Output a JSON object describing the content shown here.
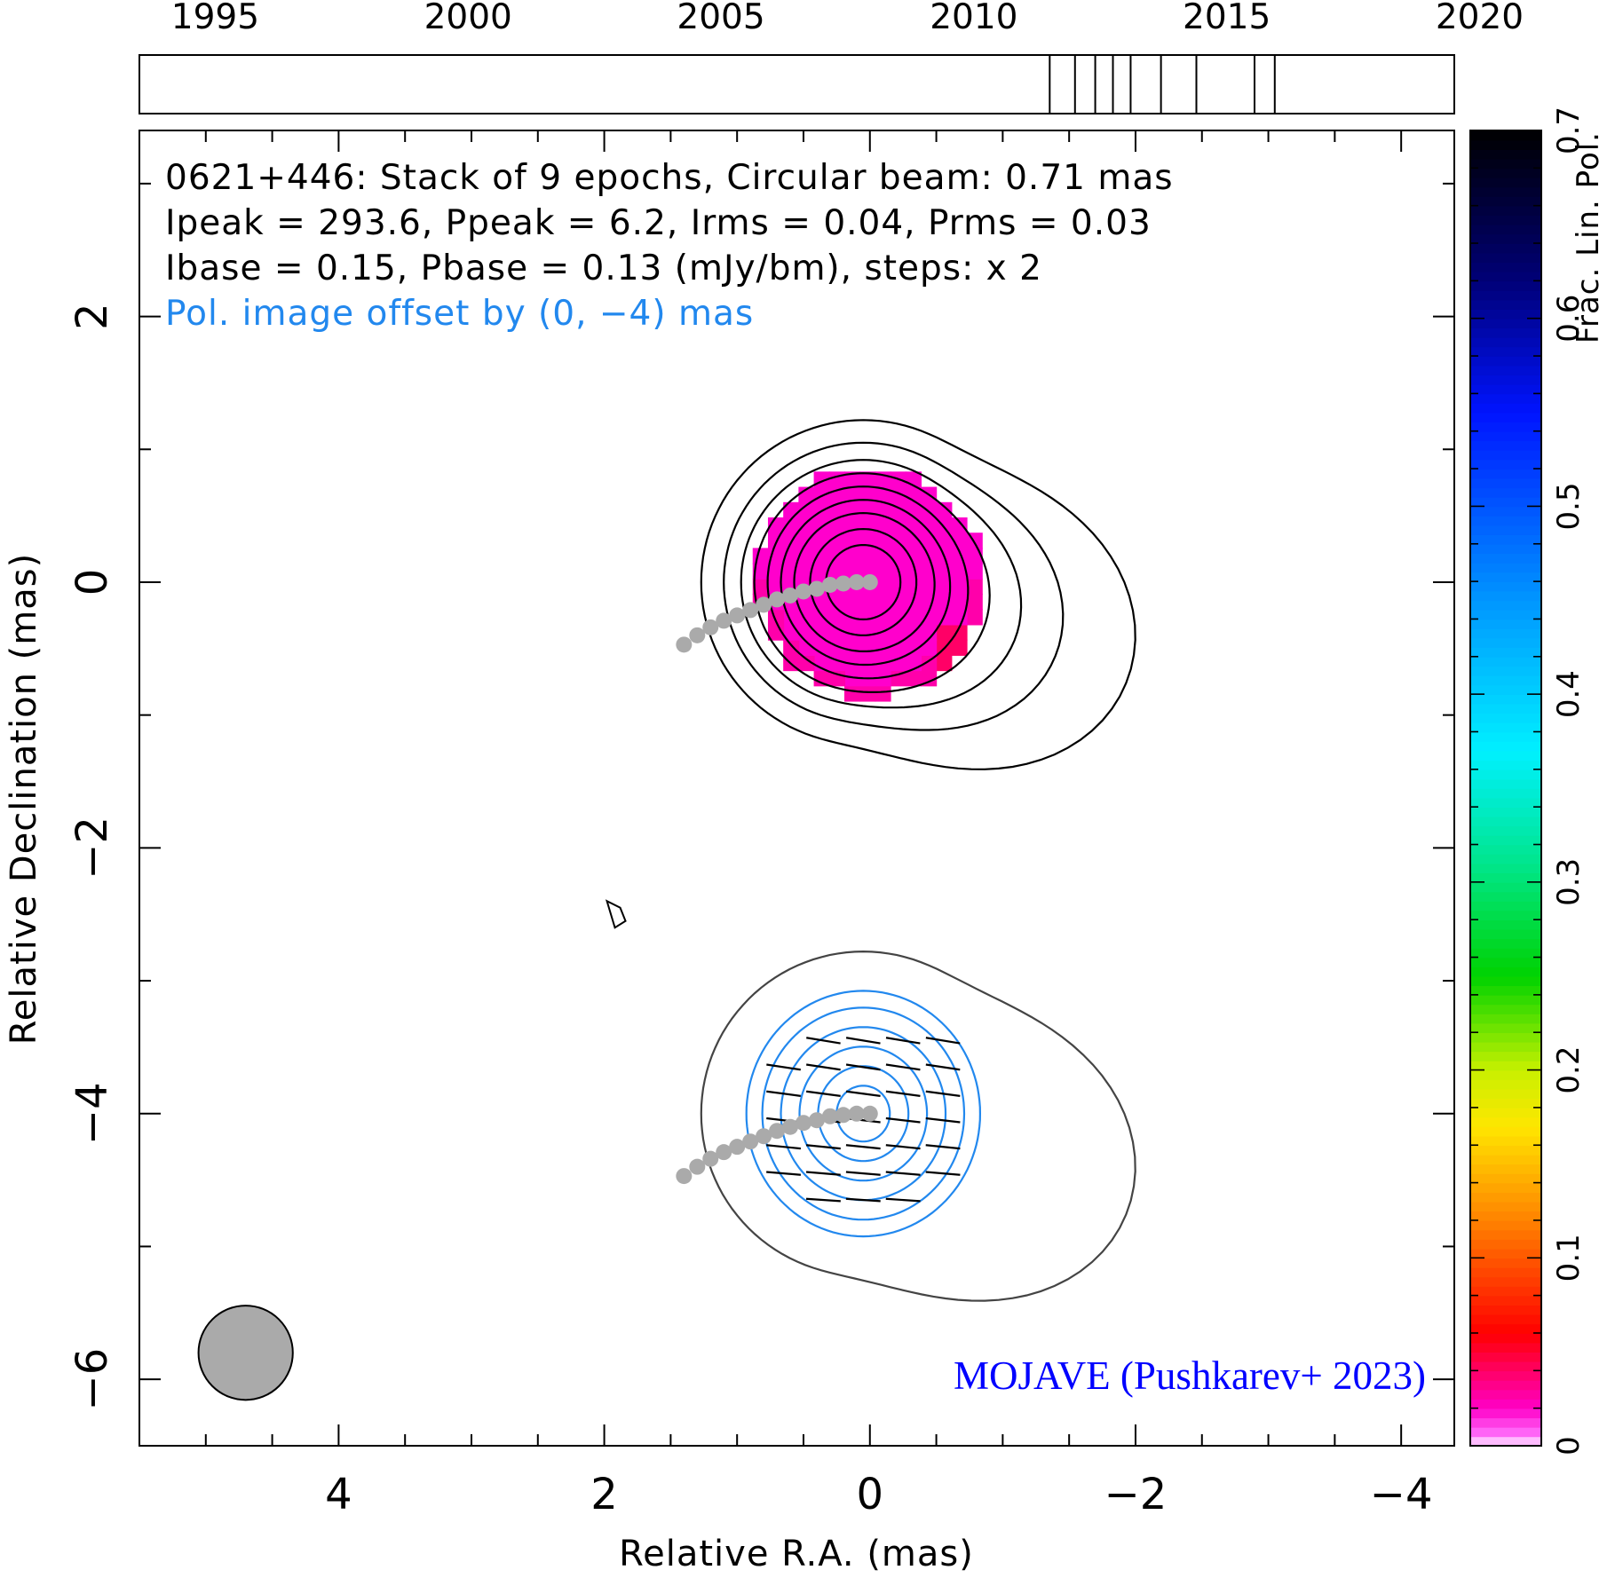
{
  "chart_data": {
    "type": "contour",
    "source_name": "0621+446",
    "header_lines": [
      "0621+446: Stack of 9 epochs, Circular beam: 0.71 mas",
      "Ipeak = 293.6, Ppeak = 6.2, Irms = 0.04, Prms = 0.03",
      "Ibase = 0.15, Pbase = 0.13 (mJy/bm), steps: x 2"
    ],
    "offset_note": "Pol. image offset by (0, −4) mas",
    "credit": "MOJAVE (Pushkarev+ 2023)",
    "xlabel": "Relative R.A. (mas)",
    "ylabel": "Relative Declination (mas)",
    "xlim": [
      5.5,
      -4.4
    ],
    "ylim": [
      -6.5,
      3.4
    ],
    "x_ticks": [
      4,
      2,
      0,
      -2,
      -4
    ],
    "x_tick_labels": [
      "4",
      "2",
      "0",
      "−2",
      "−4"
    ],
    "y_ticks": [
      2,
      0,
      -2,
      -4,
      -6
    ],
    "y_tick_labels": [
      "2",
      "0",
      "−2",
      "−4",
      "−6"
    ],
    "timeline": {
      "xlim": [
        1993.5,
        2019.5
      ],
      "tick_labels": [
        "1995",
        "2000",
        "2005",
        "2010",
        "2015",
        "2020"
      ],
      "tick_years": [
        1995,
        2000,
        2005,
        2010,
        2015,
        2020
      ],
      "epochs": [
        2011.5,
        2012.0,
        2012.4,
        2012.75,
        2013.1,
        2013.7,
        2014.4,
        2015.55,
        2015.95
      ]
    },
    "colorbar": {
      "label": "Frac. Lin. Pol.",
      "range": [
        0,
        0.7
      ],
      "tick_labels": [
        "0",
        "0.1",
        "0.2",
        "0.3",
        "0.4",
        "0.5",
        "0.6",
        "0.7"
      ],
      "tick_values": [
        0,
        0.1,
        0.2,
        0.3,
        0.4,
        0.5,
        0.6,
        0.7
      ]
    },
    "beam": {
      "diameter_mas": 0.71,
      "x": 4.7,
      "y": -5.8,
      "color": "#aaaaaa"
    },
    "ridge_line": [
      [
        0,
        0
      ],
      [
        0.1,
        0
      ],
      [
        0.2,
        -0.01
      ],
      [
        0.3,
        -0.02
      ],
      [
        0.4,
        -0.05
      ],
      [
        0.5,
        -0.07
      ],
      [
        0.6,
        -0.1
      ],
      [
        0.7,
        -0.13
      ],
      [
        0.8,
        -0.17
      ],
      [
        0.9,
        -0.21
      ],
      [
        1.0,
        -0.25
      ],
      [
        1.1,
        -0.29
      ],
      [
        1.2,
        -0.34
      ],
      [
        1.3,
        -0.4
      ],
      [
        1.4,
        -0.47
      ]
    ],
    "stokes_i_peak_center": [
      0,
      0
    ],
    "pol_peak_center": [
      0,
      -4
    ],
    "colors": {
      "stokes_i_contour": "#000000",
      "pol_outer_contour": "#444444",
      "pol_contour": "#2288ee",
      "evpa": "#000000",
      "frac_pol_fill": "#ff00cc",
      "ridge": "#aaaaaa",
      "offset_note": "#2288ee",
      "credit": "#0000ff"
    }
  }
}
